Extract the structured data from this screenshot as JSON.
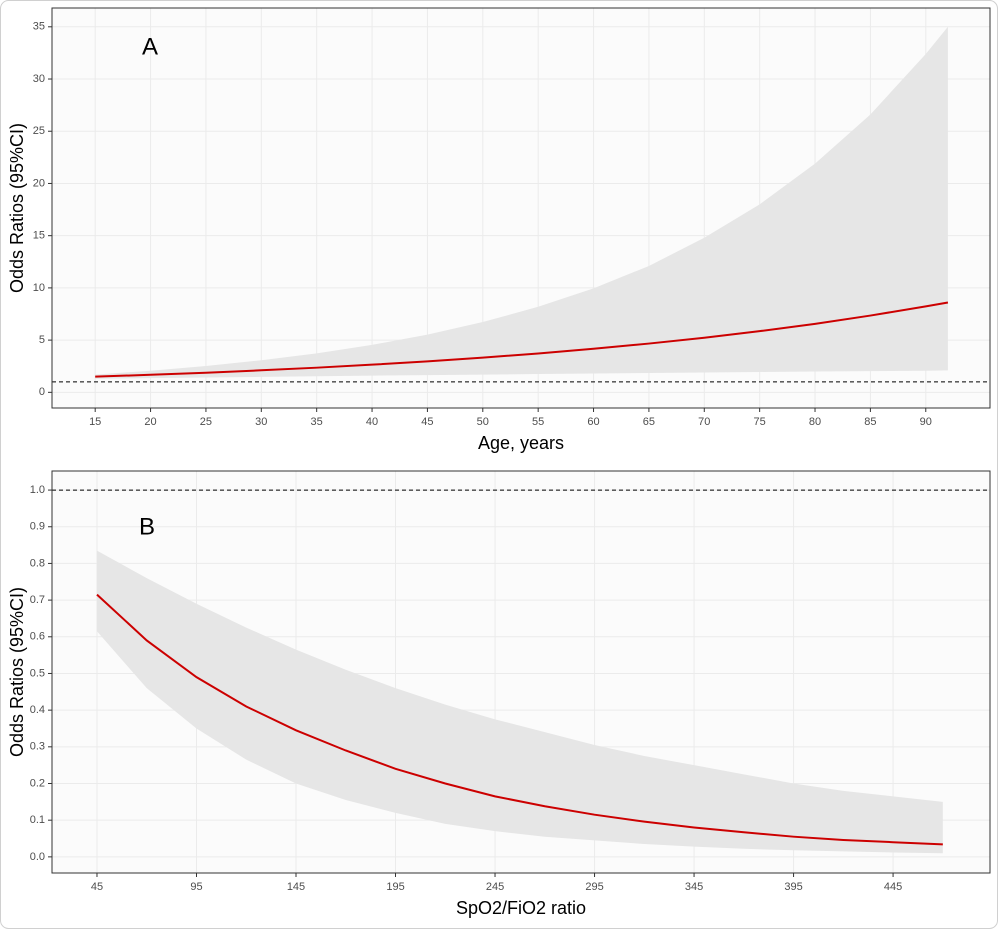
{
  "chart_data": [
    {
      "type": "line",
      "annotation": "A",
      "x_label": "Age, years",
      "y_label": "Odds Ratios (95%CI)",
      "x": [
        15,
        20,
        25,
        30,
        35,
        40,
        45,
        50,
        55,
        60,
        65,
        70,
        75,
        80,
        85,
        90,
        92
      ],
      "series": [
        {
          "color": "#cc0000",
          "band_color": "#e6e6e6",
          "values": [
            1.5,
            1.68,
            1.88,
            2.11,
            2.36,
            2.65,
            2.96,
            3.32,
            3.72,
            4.17,
            4.67,
            5.23,
            5.86,
            6.56,
            7.35,
            8.23,
            8.6
          ],
          "lower": [
            1.3,
            1.36,
            1.42,
            1.48,
            1.54,
            1.6,
            1.65,
            1.7,
            1.75,
            1.8,
            1.85,
            1.9,
            1.95,
            2.0,
            2.03,
            2.07,
            2.1
          ],
          "upper": [
            1.7,
            2.07,
            2.52,
            3.07,
            3.73,
            4.54,
            5.53,
            6.73,
            8.19,
            9.96,
            12.1,
            14.8,
            18.0,
            21.9,
            26.6,
            32.4,
            35
          ]
        }
      ],
      "hline": 1,
      "xlim": [
        11.1,
        95.8
      ],
      "ylim": [
        -1.5,
        36.8
      ],
      "xticks": [
        15,
        20,
        25,
        30,
        35,
        40,
        45,
        50,
        55,
        60,
        65,
        70,
        75,
        80,
        85,
        90
      ],
      "yticks": [
        0,
        5,
        10,
        15,
        20,
        25,
        30,
        35
      ],
      "grid": true
    },
    {
      "type": "line",
      "annotation": "B",
      "x_label": "SpO2/FiO2 ratio",
      "y_label": "Odds Ratios (95%CI)",
      "x": [
        45,
        70,
        95,
        120,
        145,
        170,
        195,
        220,
        245,
        270,
        295,
        320,
        345,
        370,
        395,
        420,
        445,
        470
      ],
      "series": [
        {
          "color": "#cc0000",
          "band_color": "#e6e6e6",
          "values": [
            0.715,
            0.59,
            0.49,
            0.41,
            0.345,
            0.29,
            0.24,
            0.2,
            0.165,
            0.138,
            0.115,
            0.096,
            0.08,
            0.067,
            0.055,
            0.046,
            0.04,
            0.034
          ],
          "lower": [
            0.615,
            0.46,
            0.35,
            0.265,
            0.2,
            0.155,
            0.12,
            0.09,
            0.07,
            0.055,
            0.045,
            0.035,
            0.028,
            0.022,
            0.018,
            0.015,
            0.012,
            0.01
          ],
          "upper": [
            0.835,
            0.76,
            0.69,
            0.625,
            0.565,
            0.51,
            0.46,
            0.415,
            0.375,
            0.34,
            0.305,
            0.275,
            0.25,
            0.225,
            0.2,
            0.18,
            0.165,
            0.15
          ]
        }
      ],
      "hline": 1,
      "xlim": [
        22.4,
        493.7
      ],
      "ylim": [
        -0.044,
        1.052
      ],
      "xticks": [
        45,
        95,
        145,
        195,
        245,
        295,
        345,
        395,
        445
      ],
      "yticks": [
        {
          "value": 0,
          "label": "0.0"
        },
        0.1,
        0.2,
        0.3,
        0.4,
        0.5,
        0.6,
        0.7,
        0.8,
        0.9,
        {
          "value": 1,
          "label": "1.0"
        }
      ],
      "grid": true
    }
  ]
}
